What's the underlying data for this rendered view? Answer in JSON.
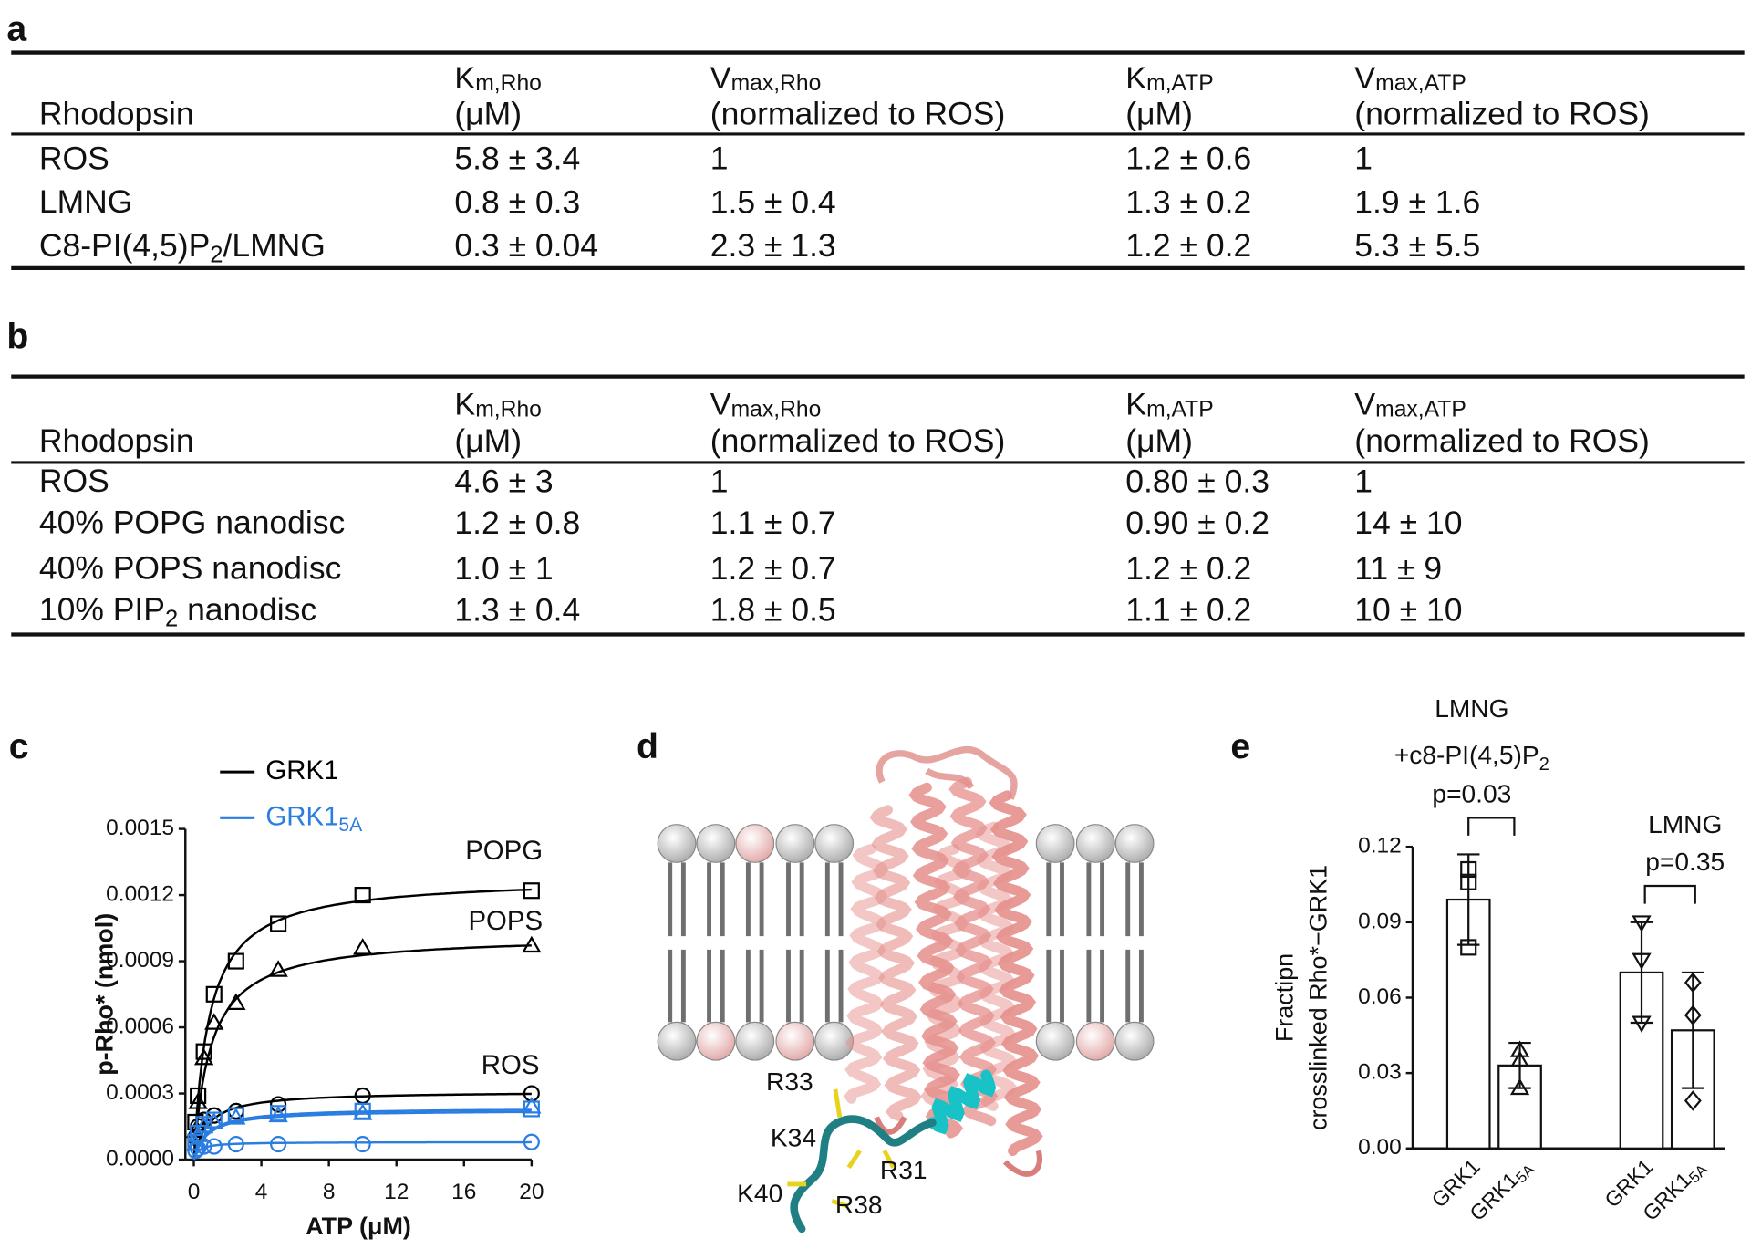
{
  "tables": [
    {
      "label": "a",
      "header": [
        {
          "line2": [
            "Rhodopsin"
          ]
        },
        {
          "line1": [
            "K",
            "m,Rho"
          ],
          "line2": [
            "(μM)"
          ]
        },
        {
          "line1": [
            "V",
            "max,Rho"
          ],
          "line2": [
            "(normalized to ROS)"
          ]
        },
        {
          "line1": [
            "K",
            "m,ATP"
          ],
          "line2": [
            "(μM)"
          ]
        },
        {
          "line1": [
            "V",
            "max,ATP"
          ],
          "line2": [
            "(normalized to ROS)"
          ]
        }
      ],
      "rows": [
        [
          [
            "ROS"
          ],
          "5.8 ± 3.4",
          "1",
          "1.2 ± 0.6",
          "1"
        ],
        [
          [
            "LMNG"
          ],
          "0.8 ± 0.3",
          "1.5 ± 0.4",
          "1.3 ± 0.2",
          "1.9 ± 1.6"
        ],
        [
          [
            "C8-PI(4,5)P",
            "2",
            "/LMNG"
          ],
          "0.3 ± 0.04",
          "2.3 ± 1.3",
          "1.2 ± 0.2",
          "5.3 ± 5.5"
        ]
      ]
    },
    {
      "label": "b",
      "header": [
        {
          "line2": [
            "Rhodopsin"
          ]
        },
        {
          "line1": [
            "K",
            "m,Rho"
          ],
          "line2": [
            "(μM)"
          ]
        },
        {
          "line1": [
            "V",
            "max,Rho"
          ],
          "line2": [
            "(normalized to ROS)"
          ]
        },
        {
          "line1": [
            "K",
            "m,ATP"
          ],
          "line2": [
            "(μM)"
          ]
        },
        {
          "line1": [
            "V",
            "max,ATP"
          ],
          "line2": [
            "(normalized to ROS)"
          ]
        }
      ],
      "rows": [
        [
          [
            "ROS"
          ],
          "4.6 ± 3",
          "1",
          "0.80 ± 0.3",
          "1"
        ],
        [
          [
            "40% POPG nanodisc"
          ],
          "1.2 ± 0.8",
          "1.1 ± 0.7",
          "0.90 ± 0.2",
          "14 ± 10"
        ],
        [
          [
            "40% POPS nanodisc"
          ],
          "1.0 ± 1",
          "1.2 ± 0.7",
          "1.2 ± 0.2",
          "11 ± 9"
        ],
        [
          [
            "10% PIP",
            "2",
            " nanodisc"
          ],
          "1.3 ± 0.4",
          "1.8 ± 0.5",
          "1.1 ± 0.2",
          "10 ± 10"
        ]
      ]
    }
  ],
  "diagram": {
    "label": "d",
    "residues": [
      "R33",
      "K34",
      "R31",
      "K40",
      "R38"
    ]
  },
  "chart_data": [
    {
      "type": "line",
      "label": "c",
      "xlabel": "ATP (μM)",
      "ylabel": "p-Rho* (nmol)",
      "xlim": [
        -0.5,
        20
      ],
      "ylim": [
        0,
        0.0015
      ],
      "xticks": [
        0,
        4,
        8,
        12,
        16,
        20
      ],
      "yticks": [
        {
          "value": 0,
          "label": "0.0000"
        },
        0.0003,
        0.0006,
        0.0009,
        0.0012,
        0.0015
      ],
      "legend": [
        {
          "name": [
            "GRK1"
          ],
          "color": "#000000"
        },
        {
          "name": [
            "GRK1",
            "5A"
          ],
          "color": "#2a7de1"
        }
      ],
      "x": [
        0.1,
        0.25,
        0.6,
        1.2,
        2.5,
        5,
        10,
        20
      ],
      "series": [
        {
          "name": "POPG",
          "color": "#000000",
          "marker": "square",
          "values": [
            0.00017,
            0.00029,
            0.00049,
            0.00075,
            0.0009,
            0.00107,
            0.0012,
            0.00122
          ],
          "fit": {
            "vmax": 0.00128,
            "km": 0.9
          }
        },
        {
          "name": "POPS",
          "color": "#000000",
          "marker": "triangle",
          "values": [
            0.00013,
            0.00026,
            0.00046,
            0.00062,
            0.00071,
            0.00086,
            0.00096,
            0.00097
          ],
          "fit": {
            "vmax": 0.00102,
            "km": 1.0
          }
        },
        {
          "name": "ROS",
          "color": "#000000",
          "marker": "circle",
          "values": [
            0.0001,
            0.00015,
            0.00018,
            0.0002,
            0.00022,
            0.00025,
            0.00029,
            0.0003
          ],
          "fit": {
            "vmax": 0.00031,
            "km": 0.8
          }
        },
        {
          "color": "#2a7de1",
          "marker": "square",
          "values": [
            8e-05,
            0.00012,
            0.00016,
            0.00018,
            0.0002,
            0.00021,
            0.00022,
            0.00023
          ],
          "fit": {
            "vmax": 0.000235,
            "km": 0.8
          }
        },
        {
          "color": "#2a7de1",
          "marker": "triangle",
          "values": [
            7e-05,
            0.00011,
            0.00015,
            0.00017,
            0.00019,
            0.0002,
            0.00021,
            0.00024
          ],
          "fit": {
            "vmax": 0.000225,
            "km": 0.8
          }
        },
        {
          "color": "#2a7de1",
          "marker": "circle",
          "values": [
            4e-05,
            5e-05,
            6e-05,
            6e-05,
            7e-05,
            7e-05,
            7e-05,
            8e-05
          ],
          "fit": {
            "vmax": 8e-05,
            "km": 0.3
          }
        }
      ]
    },
    {
      "type": "bar",
      "label": "e",
      "ylabel": [
        "Fractipn",
        "crosslinked Rho*−GRK1"
      ],
      "ylim": [
        0,
        0.12
      ],
      "yticks": [
        {
          "value": 0,
          "label": "0.00"
        },
        0.03,
        0.06,
        0.09,
        0.12
      ],
      "categories": [
        [
          "GRK1"
        ],
        [
          "GRK1",
          "5A"
        ],
        [
          "GRK1"
        ],
        [
          "GRK1",
          "5A"
        ]
      ],
      "values": [
        0.099,
        0.033,
        0.07,
        0.047
      ],
      "errors": [
        0.018,
        0.009,
        0.02,
        0.023
      ],
      "points": [
        [
          0.111,
          0.106,
          0.08
        ],
        [
          0.039,
          0.035,
          0.024
        ],
        [
          0.09,
          0.075,
          0.05
        ],
        [
          0.066,
          0.053,
          0.019
        ]
      ],
      "markers": [
        "square",
        "triangle",
        "triangle-down",
        "diamond"
      ],
      "color": "#ffffff",
      "groups": [
        {
          "title": [
            [
              "LMNG"
            ],
            [
              "+c8-PI(4,5)P",
              "2"
            ]
          ],
          "p": "p=0.03"
        },
        {
          "title": [
            [
              "LMNG"
            ]
          ],
          "p": "p=0.35"
        }
      ]
    }
  ]
}
